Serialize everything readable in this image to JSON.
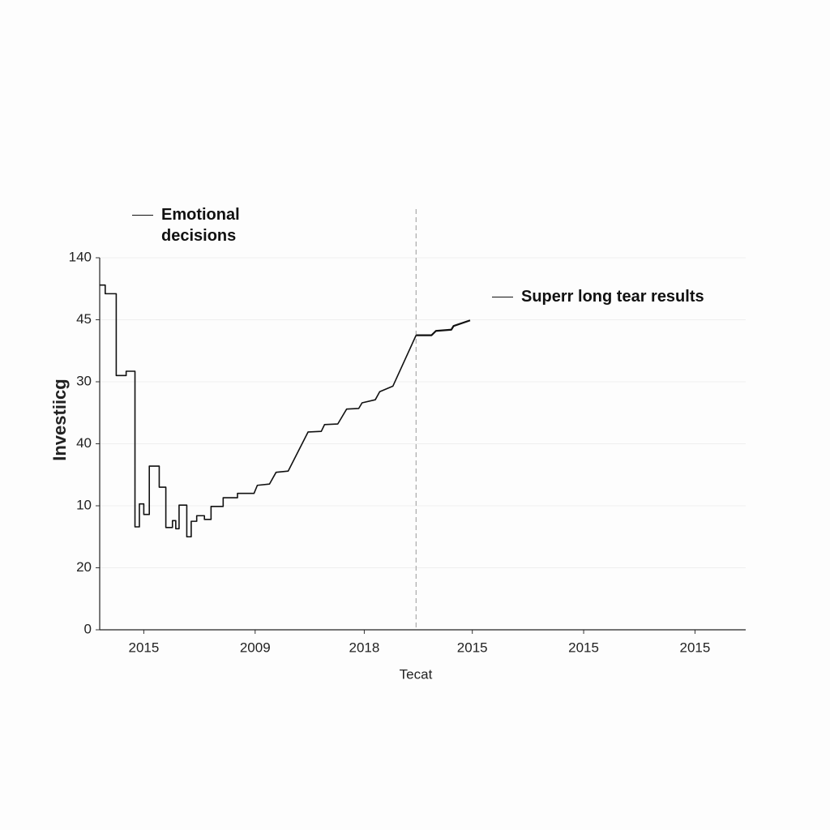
{
  "chart_data": {
    "type": "line",
    "xlabel": "Tecat",
    "ylabel": "Investiicg",
    "xlim": [
      0,
      5.86
    ],
    "ylim": [
      0,
      6
    ],
    "xticks": [
      {
        "value": 0.4,
        "label": "2015"
      },
      {
        "value": 1.41,
        "label": "2009"
      },
      {
        "value": 2.4,
        "label": "2018"
      },
      {
        "value": 3.38,
        "label": "2015"
      },
      {
        "value": 4.39,
        "label": "2015"
      },
      {
        "value": 5.4,
        "label": "2015"
      }
    ],
    "yticks": [
      0,
      {
        "value": 1,
        "label": "20"
      },
      {
        "value": 2,
        "label": "10"
      },
      {
        "value": 3,
        "label": "40"
      },
      {
        "value": 4,
        "label": "30"
      },
      {
        "value": 5,
        "label": "45"
      },
      {
        "value": 6,
        "label": "140"
      }
    ],
    "grid": true,
    "vline": 2.87,
    "series": [
      {
        "name": "Emotional decisions",
        "color": "#111111",
        "x": [
          0,
          0.05,
          0.05,
          0.15,
          0.15,
          0.24,
          0.24,
          0.32,
          0.32,
          0.36,
          0.36,
          0.4,
          0.4,
          0.45,
          0.45,
          0.54,
          0.54,
          0.6,
          0.6,
          0.66,
          0.66,
          0.69,
          0.69,
          0.72,
          0.72,
          0.79,
          0.79,
          0.83,
          0.83,
          0.88,
          0.88,
          0.95,
          0.95,
          1.01,
          1.01,
          1.12,
          1.12,
          1.25,
          1.25,
          1.4,
          1.43,
          1.54,
          1.6,
          1.71,
          1.89,
          2.01,
          2.04,
          2.16,
          2.24,
          2.35,
          2.38,
          2.5,
          2.54,
          2.66,
          2.87
        ],
        "values": [
          5.56,
          5.56,
          5.42,
          5.42,
          4.1,
          4.1,
          4.17,
          4.17,
          1.66,
          1.66,
          2.03,
          2.03,
          1.86,
          1.86,
          2.64,
          2.64,
          2.3,
          2.3,
          1.65,
          1.65,
          1.76,
          1.76,
          1.63,
          1.63,
          2.01,
          2.01,
          1.5,
          1.5,
          1.75,
          1.75,
          1.84,
          1.84,
          1.78,
          1.78,
          1.99,
          1.99,
          2.13,
          2.13,
          2.2,
          2.2,
          2.33,
          2.35,
          2.54,
          2.56,
          3.19,
          3.2,
          3.31,
          3.32,
          3.56,
          3.57,
          3.66,
          3.71,
          3.84,
          3.93,
          4.75
        ]
      },
      {
        "name": "Superr long tear results",
        "color": "#111111",
        "x": [
          2.87,
          3.01,
          3.05,
          3.19,
          3.21,
          3.36
        ],
        "values": [
          4.75,
          4.75,
          4.82,
          4.84,
          4.9,
          4.99
        ]
      }
    ]
  }
}
